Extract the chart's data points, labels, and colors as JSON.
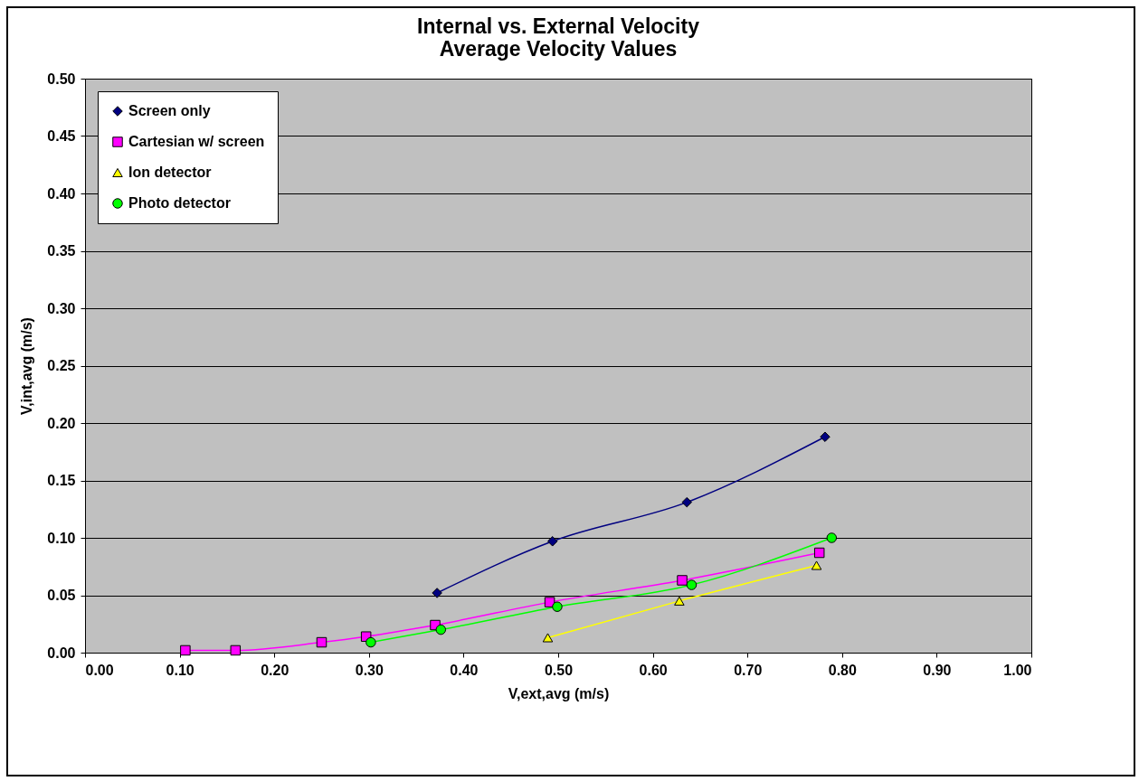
{
  "chart_data": {
    "type": "line",
    "title": "Internal vs. External Velocity",
    "subtitle": "Average Velocity Values",
    "xlabel": "V,ext,avg (m/s)",
    "ylabel": "V,int,avg (m/s)",
    "xlim": [
      0,
      1
    ],
    "xticks": [
      {
        "value": 0,
        "label": "0.00"
      },
      {
        "value": 0.1,
        "label": "0.10"
      },
      {
        "value": 0.2,
        "label": "0.20"
      },
      {
        "value": 0.3,
        "label": "0.30"
      },
      {
        "value": 0.4,
        "label": "0.40"
      },
      {
        "value": 0.5,
        "label": "0.50"
      },
      {
        "value": 0.6,
        "label": "0.60"
      },
      {
        "value": 0.7,
        "label": "0.70"
      },
      {
        "value": 0.8,
        "label": "0.80"
      },
      {
        "value": 0.9,
        "label": "0.90"
      },
      {
        "value": 1,
        "label": "1.00"
      }
    ],
    "ylim": [
      0,
      0.5
    ],
    "yticks": [
      {
        "value": 0,
        "label": "0.00"
      },
      {
        "value": 0.05,
        "label": "0.05"
      },
      {
        "value": 0.1,
        "label": "0.10"
      },
      {
        "value": 0.15,
        "label": "0.15"
      },
      {
        "value": 0.2,
        "label": "0.20"
      },
      {
        "value": 0.25,
        "label": "0.25"
      },
      {
        "value": 0.3,
        "label": "0.30"
      },
      {
        "value": 0.35,
        "label": "0.35"
      },
      {
        "value": 0.4,
        "label": "0.40"
      },
      {
        "value": 0.45,
        "label": "0.45"
      },
      {
        "value": 0.5,
        "label": "0.50"
      }
    ],
    "grid": "y",
    "legend": "top left",
    "series": [
      {
        "name": "Screen only",
        "color": "#000080",
        "marker": "diamond",
        "x": [
          0.372,
          0.494,
          0.636,
          0.782
        ],
        "values": [
          0.052,
          0.097,
          0.131,
          0.188
        ]
      },
      {
        "name": "Cartesian w/ screen",
        "color": "#ff00ff",
        "marker": "square",
        "x": [
          0.106,
          0.159,
          0.25,
          0.297,
          0.37,
          0.491,
          0.631,
          0.776
        ],
        "values": [
          0.002,
          0.002,
          0.009,
          0.014,
          0.024,
          0.044,
          0.063,
          0.087
        ]
      },
      {
        "name": "Ion detector",
        "color": "#ffff00",
        "marker": "triangle",
        "x": [
          0.489,
          0.628,
          0.773
        ],
        "values": [
          0.013,
          0.045,
          0.076
        ]
      },
      {
        "name": "Photo detector",
        "color": "#00ff00",
        "marker": "circle",
        "x": [
          0.302,
          0.376,
          0.499,
          0.641,
          0.789
        ],
        "values": [
          0.009,
          0.02,
          0.04,
          0.059,
          0.1
        ]
      }
    ]
  }
}
